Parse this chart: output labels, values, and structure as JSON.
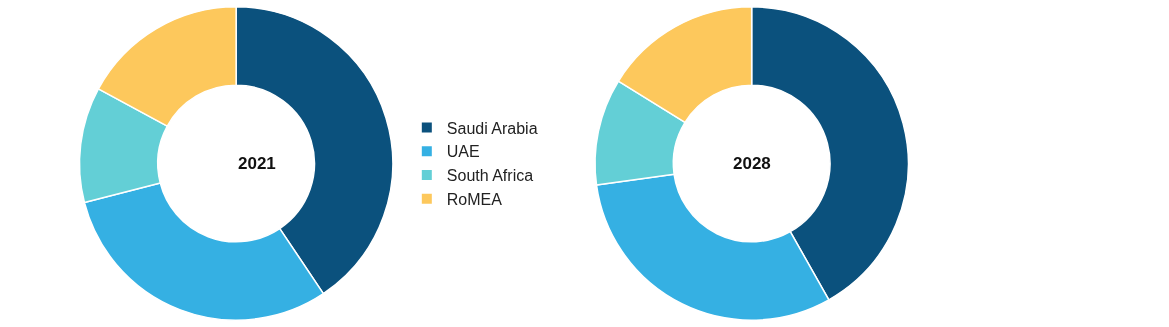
{
  "chart_data": {
    "type": "donut",
    "categories": [
      "Saudi Arabia",
      "UAE",
      "South Africa",
      "RoMEA"
    ],
    "colors": [
      "#0b517d",
      "#35b0e3",
      "#63cfd6",
      "#fdc85c"
    ],
    "legend": "right",
    "series": [
      {
        "name": "2021",
        "values": [
          40.6,
          30.4,
          11.9,
          17.1
        ]
      },
      {
        "name": "2028",
        "values": [
          41.8,
          31.0,
          11.0,
          16.2
        ]
      }
    ]
  }
}
